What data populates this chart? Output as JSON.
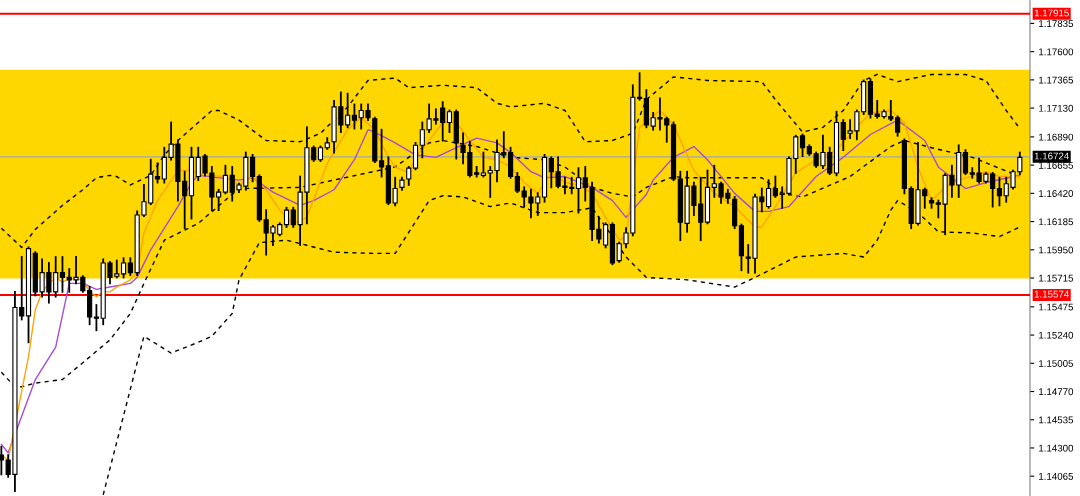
{
  "chart_data": {
    "type": "candlestick",
    "categories": [
      null,
      null,
      null,
      null,
      null,
      null,
      null,
      null,
      null,
      null,
      null,
      null,
      null,
      null,
      null,
      null,
      null,
      null,
      null,
      null,
      null,
      null,
      null,
      null,
      null,
      null,
      null,
      null,
      null,
      null,
      null,
      null,
      null,
      null,
      null,
      null,
      null,
      null,
      null,
      null,
      null,
      null,
      null,
      null,
      null,
      null,
      null,
      null,
      null,
      null,
      null,
      null,
      null,
      null,
      null,
      null,
      null,
      null,
      null,
      null,
      null,
      null,
      null,
      null,
      null,
      null,
      null,
      null,
      null,
      null,
      null,
      null,
      null,
      null,
      null,
      null,
      null,
      null,
      null,
      null,
      null,
      null,
      null,
      null,
      null,
      null,
      null,
      null,
      null,
      null,
      null,
      null,
      null,
      null,
      null,
      null,
      null,
      null,
      null,
      null,
      null,
      null,
      null,
      null,
      null,
      null,
      null,
      null,
      null,
      null,
      null,
      null,
      null,
      null,
      null,
      null,
      null,
      null,
      null,
      null,
      null,
      null,
      null,
      null,
      null,
      null,
      null,
      null,
      null,
      null,
      null,
      null,
      null,
      null,
      null,
      null,
      null,
      null,
      null,
      null,
      null,
      null,
      null,
      null,
      null,
      null,
      null,
      null,
      null,
      null,
      null
    ],
    "ohlc": [
      [
        1.1424,
        1.1431,
        1.1408,
        1.142
      ],
      [
        1.142,
        1.1424,
        1.1406,
        1.1408
      ],
      [
        1.1408,
        1.156,
        1.1394,
        1.1547
      ],
      [
        1.1547,
        1.1589,
        1.1537,
        1.154
      ],
      [
        1.154,
        1.1597,
        1.1518,
        1.1596
      ],
      [
        1.1592,
        1.1593,
        1.1557,
        1.156
      ],
      [
        1.156,
        1.1587,
        1.1556,
        1.1576
      ],
      [
        1.1576,
        1.1584,
        1.1551,
        1.156
      ],
      [
        1.156,
        1.1589,
        1.1556,
        1.1576
      ],
      [
        1.1576,
        1.1589,
        1.156,
        1.1572
      ],
      [
        1.1572,
        1.1579,
        1.156,
        1.157
      ],
      [
        1.157,
        1.1589,
        1.1567,
        1.1572
      ],
      [
        1.1572,
        1.1573,
        1.156,
        1.1561
      ],
      [
        1.1561,
        1.1564,
        1.1533,
        1.1539
      ],
      [
        1.1539,
        1.1549,
        1.1528,
        1.1538
      ],
      [
        1.1538,
        1.1587,
        1.1533,
        1.1584
      ],
      [
        1.1584,
        1.1585,
        1.1567,
        1.1572
      ],
      [
        1.1573,
        1.1586,
        1.1572,
        1.1575
      ],
      [
        1.1575,
        1.1588,
        1.1572,
        1.1584
      ],
      [
        1.1584,
        1.1588,
        1.1574,
        1.1576
      ],
      [
        1.1576,
        1.1627,
        1.1574,
        1.1624
      ],
      [
        1.1624,
        1.1649,
        1.1623,
        1.1635
      ],
      [
        1.1634,
        1.167,
        1.1633,
        1.1658
      ],
      [
        1.1656,
        1.1667,
        1.1651,
        1.1654
      ],
      [
        1.1654,
        1.168,
        1.1651,
        1.1672
      ],
      [
        1.1672,
        1.1701,
        1.167,
        1.1683
      ],
      [
        1.1683,
        1.1686,
        1.1636,
        1.1652
      ],
      [
        1.1652,
        1.166,
        1.1613,
        1.164
      ],
      [
        1.164,
        1.168,
        1.1621,
        1.1672
      ],
      [
        1.1656,
        1.168,
        1.1653,
        1.1672
      ],
      [
        1.1673,
        1.1674,
        1.1657,
        1.1659
      ],
      [
        1.1659,
        1.1664,
        1.1628,
        1.1639
      ],
      [
        1.1639,
        1.1645,
        1.1628,
        1.1643
      ],
      [
        1.1643,
        1.1665,
        1.1642,
        1.1657
      ],
      [
        1.1657,
        1.1664,
        1.1636,
        1.1643
      ],
      [
        1.1645,
        1.165,
        1.1643,
        1.1649
      ],
      [
        1.1648,
        1.1676,
        1.1645,
        1.1672
      ],
      [
        1.1672,
        1.1674,
        1.1652,
        1.1656
      ],
      [
        1.1656,
        1.1657,
        1.1619,
        1.162
      ],
      [
        1.162,
        1.1628,
        1.1591,
        1.1609
      ],
      [
        1.1609,
        1.1615,
        1.1599,
        1.1614
      ],
      [
        1.1608,
        1.1617,
        1.1607,
        1.1616
      ],
      [
        1.1616,
        1.163,
        1.1614,
        1.1628
      ],
      [
        1.1628,
        1.163,
        1.1614,
        1.1616
      ],
      [
        1.1616,
        1.1656,
        1.1599,
        1.1643
      ],
      [
        1.1643,
        1.1697,
        1.1617,
        1.168
      ],
      [
        1.168,
        1.1681,
        1.1669,
        1.167
      ],
      [
        1.167,
        1.1681,
        1.1669,
        1.168
      ],
      [
        1.168,
        1.1688,
        1.1679,
        1.1684
      ],
      [
        1.1685,
        1.1719,
        1.1676,
        1.1714
      ],
      [
        1.1714,
        1.1726,
        1.1693,
        1.1699
      ],
      [
        1.1699,
        1.1725,
        1.1697,
        1.1707
      ],
      [
        1.1707,
        1.1716,
        1.1696,
        1.1703
      ],
      [
        1.1705,
        1.1716,
        1.1696,
        1.1711
      ],
      [
        1.1711,
        1.1716,
        1.1703,
        1.1705
      ],
      [
        1.1704,
        1.1705,
        1.1668,
        1.1669
      ],
      [
        1.1669,
        1.1695,
        1.1656,
        1.1664
      ],
      [
        1.1665,
        1.1672,
        1.1633,
        1.1634
      ],
      [
        1.1634,
        1.1655,
        1.1632,
        1.1646
      ],
      [
        1.1647,
        1.1655,
        1.1645,
        1.1653
      ],
      [
        1.1654,
        1.1664,
        1.1649,
        1.1663
      ],
      [
        1.1663,
        1.1684,
        1.1662,
        1.1682
      ],
      [
        1.1682,
        1.1701,
        1.1672,
        1.1695
      ],
      [
        1.1695,
        1.1716,
        1.1693,
        1.1704
      ],
      [
        1.1704,
        1.1712,
        1.17,
        1.1703
      ],
      [
        1.1713,
        1.1718,
        1.1686,
        1.1701
      ],
      [
        1.1701,
        1.1711,
        1.1693,
        1.171
      ],
      [
        1.171,
        1.1711,
        1.1671,
        1.1684
      ],
      [
        1.1682,
        1.1692,
        1.1667,
        1.1676
      ],
      [
        1.1676,
        1.1685,
        1.1656,
        1.1657
      ],
      [
        1.1659,
        1.1664,
        1.1656,
        1.1658
      ],
      [
        1.1657,
        1.1676,
        1.1656,
        1.1659
      ],
      [
        1.1659,
        1.1664,
        1.1639,
        1.1661
      ],
      [
        1.1661,
        1.1686,
        1.1652,
        1.1676
      ],
      [
        1.1676,
        1.1693,
        1.1672,
        1.1674
      ],
      [
        1.1676,
        1.168,
        1.1655,
        1.1656
      ],
      [
        1.1656,
        1.1659,
        1.1643,
        1.1644
      ],
      [
        1.1644,
        1.1647,
        1.1631,
        1.1639
      ],
      [
        1.1639,
        1.1645,
        1.1622,
        1.1634
      ],
      [
        1.1634,
        1.1642,
        1.1624,
        1.1639
      ],
      [
        1.1639,
        1.1674,
        1.1635,
        1.1672
      ],
      [
        1.1671,
        1.1672,
        1.1647,
        1.166
      ],
      [
        1.166,
        1.1672,
        1.1647,
        1.1648
      ],
      [
        1.1648,
        1.1655,
        1.1642,
        1.1647
      ],
      [
        1.1647,
        1.1655,
        1.1642,
        1.1646
      ],
      [
        1.1646,
        1.1663,
        1.1626,
        1.1655
      ],
      [
        1.1655,
        1.1664,
        1.1636,
        1.1647
      ],
      [
        1.1647,
        1.1651,
        1.1603,
        1.1612
      ],
      [
        1.1612,
        1.1622,
        1.1601,
        1.1604
      ],
      [
        1.1599,
        1.1617,
        1.1597,
        1.1616
      ],
      [
        1.1616,
        1.1617,
        1.1583,
        1.1584
      ],
      [
        1.1586,
        1.1601,
        1.1585,
        1.16
      ],
      [
        1.16,
        1.1613,
        1.1597,
        1.1609
      ],
      [
        1.1609,
        1.1732,
        1.1607,
        1.1722
      ],
      [
        1.1722,
        1.1742,
        1.172,
        1.1721
      ],
      [
        1.1721,
        1.1728,
        1.1697,
        1.1699
      ],
      [
        1.1698,
        1.1709,
        1.1695,
        1.1705
      ],
      [
        1.1705,
        1.1721,
        1.1695,
        1.1704
      ],
      [
        1.1704,
        1.1705,
        1.1685,
        1.1699
      ],
      [
        1.1699,
        1.1701,
        1.1653,
        1.1654
      ],
      [
        1.1654,
        1.166,
        1.1603,
        1.1618
      ],
      [
        1.1617,
        1.166,
        1.161,
        1.1648
      ],
      [
        1.1648,
        1.1651,
        1.1624,
        1.1632
      ],
      [
        1.1633,
        1.1655,
        1.1603,
        1.1618
      ],
      [
        1.1618,
        1.1661,
        1.1617,
        1.1647
      ],
      [
        1.1647,
        1.1665,
        1.1639,
        1.165
      ],
      [
        1.165,
        1.1651,
        1.1634,
        1.1639
      ],
      [
        1.1642,
        1.1645,
        1.1634,
        1.1638
      ],
      [
        1.1637,
        1.1639,
        1.1613,
        1.1615
      ],
      [
        1.1615,
        1.1616,
        1.1578,
        1.159
      ],
      [
        1.1589,
        1.1599,
        1.1576,
        1.1588
      ],
      [
        1.1588,
        1.1641,
        1.1576,
        1.1639
      ],
      [
        1.1639,
        1.1646,
        1.1627,
        1.1635
      ],
      [
        1.1631,
        1.1653,
        1.163,
        1.1646
      ],
      [
        1.1646,
        1.1656,
        1.1639,
        1.164
      ],
      [
        1.1641,
        1.1647,
        1.163,
        1.1642
      ],
      [
        1.1642,
        1.1672,
        1.1641,
        1.1671
      ],
      [
        1.1671,
        1.169,
        1.1659,
        1.1689
      ],
      [
        1.169,
        1.1691,
        1.1673,
        1.168
      ],
      [
        1.1681,
        1.1682,
        1.1674,
        1.1675
      ],
      [
        1.1675,
        1.1676,
        1.1664,
        1.1665
      ],
      [
        1.1665,
        1.169,
        1.1663,
        1.1676
      ],
      [
        1.1676,
        1.168,
        1.1658,
        1.1659
      ],
      [
        1.1659,
        1.171,
        1.1657,
        1.1701
      ],
      [
        1.1701,
        1.1703,
        1.1678,
        1.1687
      ],
      [
        1.1692,
        1.1703,
        1.1688,
        1.1694
      ],
      [
        1.1694,
        1.1711,
        1.1687,
        1.171
      ],
      [
        1.171,
        1.1736,
        1.1708,
        1.1735
      ],
      [
        1.1735,
        1.1737,
        1.1705,
        1.1708
      ],
      [
        1.1708,
        1.1719,
        1.1705,
        1.1706
      ],
      [
        1.1706,
        1.1711,
        1.1705,
        1.171
      ],
      [
        1.1706,
        1.1719,
        1.1703,
        1.1704
      ],
      [
        1.1705,
        1.1706,
        1.169,
        1.1693
      ],
      [
        1.1686,
        1.1687,
        1.1642,
        1.1646
      ],
      [
        1.1646,
        1.1647,
        1.1613,
        1.1617
      ],
      [
        1.1617,
        1.1684,
        1.1616,
        1.1645
      ],
      [
        1.1645,
        1.1646,
        1.163,
        1.164
      ],
      [
        1.1636,
        1.1638,
        1.163,
        1.1634
      ],
      [
        1.1634,
        1.1636,
        1.1622,
        1.1633
      ],
      [
        1.1633,
        1.1658,
        1.1608,
        1.1657
      ],
      [
        1.1657,
        1.1665,
        1.1639,
        1.1649
      ],
      [
        1.1649,
        1.1682,
        1.1639,
        1.1676
      ],
      [
        1.1676,
        1.1678,
        1.1658,
        1.1659
      ],
      [
        1.1659,
        1.1663,
        1.1655,
        1.1658
      ],
      [
        1.1659,
        1.1671,
        1.1651,
        1.1652
      ],
      [
        1.1652,
        1.1659,
        1.1651,
        1.1658
      ],
      [
        1.1658,
        1.1659,
        1.1631,
        1.1646
      ],
      [
        1.1646,
        1.1655,
        1.1632,
        1.164
      ],
      [
        1.164,
        1.1655,
        1.1635,
        1.165
      ],
      [
        1.1647,
        1.1661,
        1.1646,
        1.166
      ],
      [
        1.166,
        1.1676,
        1.1658,
        1.1672
      ]
    ],
    "series": [
      {
        "type": "line",
        "color": "#000000",
        "line_style": "dashed",
        "values": [
          1.1613,
          null,
          null,
          1.1597,
          null,
          1.1612,
          null,
          null,
          null,
          1.1632,
          null,
          null,
          1.1645,
          null,
          1.1655,
          null,
          1.1657,
          1.1656,
          null,
          1.1649,
          null,
          null,
          1.1657,
          null,
          1.1674,
          null,
          1.1686,
          null,
          null,
          null,
          null,
          1.1711,
          1.1711,
          null,
          null,
          1.1703,
          null,
          null,
          null,
          1.1686,
          null,
          null,
          null,
          null,
          1.1685,
          null,
          null,
          1.1692,
          null,
          null,
          null,
          1.1714,
          null,
          null,
          1.1736,
          null,
          null,
          null,
          1.1738,
          null,
          1.173,
          null,
          null,
          null,
          null,
          1.1732,
          null,
          null,
          null,
          null,
          1.173,
          null,
          null,
          1.1717,
          null,
          1.1714,
          null,
          null,
          null,
          null,
          1.1717,
          null,
          null,
          1.1711,
          null,
          null,
          1.1685,
          null,
          null,
          null,
          1.1686,
          null,
          null,
          1.1692,
          null,
          1.172,
          null,
          null,
          null,
          1.1739,
          null,
          null,
          null,
          null,
          1.1736,
          null,
          null,
          null,
          null,
          null,
          null,
          null,
          1.1735,
          null,
          1.172,
          null,
          null,
          null,
          1.1693,
          null,
          null,
          1.1697,
          null,
          null,
          1.1711,
          null,
          null,
          1.1736,
          null,
          1.1741,
          null,
          null,
          1.1735,
          null,
          null,
          null,
          null,
          1.1741,
          null,
          null,
          null,
          null,
          1.1741,
          null,
          null,
          1.1736,
          null,
          null,
          1.1711,
          null,
          1.1696
        ]
      },
      {
        "type": "line",
        "color": "#000000",
        "line_style": "dashed",
        "values": [
          1.1493,
          null,
          1.1481,
          1.1481,
          null,
          1.1484,
          null,
          null,
          null,
          1.1487,
          null,
          null,
          1.1501,
          null,
          null,
          null,
          1.152,
          null,
          null,
          1.1542,
          null,
          1.1567,
          null,
          null,
          1.1603,
          null,
          null,
          null,
          null,
          1.1617,
          null,
          null,
          null,
          null,
          null,
          1.1646,
          null,
          null,
          null,
          null,
          null,
          null,
          null,
          null,
          1.1647,
          null,
          null,
          null,
          null,
          null,
          null,
          null,
          null,
          null,
          null,
          null,
          null,
          null,
          1.1664,
          null,
          null,
          null,
          null,
          1.1684,
          null,
          1.1686,
          null,
          null,
          null,
          null,
          1.1681,
          null,
          null,
          null,
          null,
          1.1672,
          null,
          null,
          null,
          null,
          1.167,
          null,
          null,
          1.1664,
          null,
          null,
          null,
          1.1647,
          null,
          null,
          1.1642,
          null,
          null,
          1.1639,
          null,
          1.1647,
          null,
          null,
          null,
          1.1656,
          null,
          1.1655,
          null,
          null,
          null,
          null,
          null,
          null,
          null,
          null,
          null,
          null,
          1.1655,
          null,
          null,
          1.1642,
          null,
          null,
          1.1639,
          null,
          null,
          null,
          null,
          null,
          null,
          1.1656,
          null,
          null,
          null,
          null,
          null,
          1.1681,
          null,
          1.1686,
          null,
          null,
          null,
          1.168,
          null,
          null,
          null,
          null,
          null,
          1.1672,
          null,
          null,
          null,
          null,
          null,
          null,
          1.1656
        ]
      },
      {
        "type": "line",
        "color": "#000000",
        "line_style": "dashed",
        "values": [
          null,
          null,
          null,
          null,
          null,
          null,
          null,
          null,
          null,
          null,
          null,
          null,
          null,
          null,
          null,
          1.1391,
          null,
          null,
          null,
          null,
          null,
          1.1523,
          null,
          null,
          null,
          1.1509,
          null,
          null,
          null,
          1.1518,
          null,
          1.1523,
          null,
          null,
          1.1542,
          1.157,
          null,
          null,
          1.1601,
          null,
          null,
          null,
          1.1603,
          null,
          null,
          null,
          null,
          null,
          null,
          1.1593,
          null,
          null,
          null,
          null,
          null,
          1.1592,
          null,
          null,
          1.1592,
          null,
          null,
          null,
          null,
          1.1636,
          null,
          1.164,
          null,
          null,
          1.1639,
          null,
          null,
          null,
          1.1631,
          null,
          null,
          1.1634,
          null,
          null,
          null,
          1.1626,
          null,
          null,
          null,
          1.1626,
          null,
          null,
          null,
          1.163,
          null,
          null,
          1.1606,
          null,
          1.1589,
          null,
          null,
          1.1572,
          null,
          null,
          null,
          null,
          null,
          1.157,
          null,
          null,
          null,
          null,
          null,
          null,
          1.1564,
          null,
          null,
          1.1572,
          null,
          null,
          null,
          null,
          null,
          1.1589,
          null,
          null,
          null,
          null,
          null,
          null,
          1.1592,
          null,
          null,
          1.1589,
          null,
          1.1603,
          null,
          1.1628,
          1.1636,
          null,
          null,
          1.1626,
          null,
          null,
          1.161,
          null,
          null,
          null,
          null,
          1.1609,
          null,
          null,
          null,
          1.1606,
          null,
          null,
          1.1614
        ]
      },
      {
        "type": "line",
        "color": "#a64bd6",
        "line_style": "solid",
        "values": [
          1.1433,
          1.1426,
          null,
          null,
          null,
          1.1487,
          null,
          null,
          1.1514,
          null,
          1.1567,
          null,
          1.1567,
          null,
          1.1562,
          null,
          1.1564,
          null,
          null,
          1.1567,
          1.1572,
          null,
          1.1595,
          null,
          null,
          null,
          1.1631,
          null,
          1.1651,
          1.1657,
          null,
          null,
          null,
          null,
          null,
          1.1653,
          null,
          1.1655,
          null,
          null,
          1.1643,
          null,
          null,
          null,
          1.1632,
          null,
          1.1636,
          null,
          null,
          1.1645,
          null,
          null,
          1.167,
          null,
          1.1695,
          1.1693,
          null,
          null,
          1.1684,
          null,
          null,
          1.1674,
          null,
          null,
          1.1672,
          null,
          null,
          1.168,
          null,
          null,
          1.1688,
          null,
          null,
          1.1684,
          null,
          1.1676,
          null,
          null,
          1.166,
          null,
          1.1655,
          null,
          null,
          1.1656,
          null,
          null,
          null,
          1.1647,
          null,
          null,
          1.1636,
          null,
          1.1622,
          null,
          null,
          1.1641,
          1.1653,
          null,
          null,
          1.1672,
          null,
          null,
          1.1681,
          null,
          1.167,
          null,
          null,
          null,
          1.1642,
          null,
          null,
          1.1627,
          null,
          1.1627,
          null,
          null,
          1.1631,
          null,
          null,
          null,
          1.1656,
          null,
          null,
          null,
          1.1672,
          null,
          null,
          null,
          1.1691,
          null,
          null,
          null,
          1.1703,
          null,
          null,
          null,
          1.1686,
          null,
          1.1664,
          null,
          null,
          null,
          1.1646,
          null,
          null,
          1.1651,
          null,
          null,
          null,
          null,
          1.1657
        ]
      },
      {
        "type": "line",
        "color": "#ffa500",
        "line_style": "solid",
        "values": [
          1.1424,
          1.142,
          null,
          null,
          1.1506,
          1.1545,
          1.156,
          1.1567,
          1.1572,
          1.1568,
          1.1571,
          null,
          1.157,
          1.156,
          1.1556,
          1.156,
          1.156,
          1.1564,
          null,
          1.157,
          1.1576,
          1.1609,
          null,
          1.1636,
          null,
          null,
          1.1661,
          null,
          1.1661,
          null,
          1.1657,
          null,
          null,
          1.1656,
          null,
          1.1649,
          null,
          1.1656,
          null,
          1.1645,
          null,
          1.1628,
          null,
          1.1617,
          null,
          1.1622,
          null,
          null,
          1.1667,
          null,
          null,
          1.1695,
          null,
          1.1705,
          null,
          1.1695,
          null,
          1.1672,
          1.1664,
          null,
          1.1659,
          1.1672,
          null,
          1.1686,
          null,
          1.1701,
          null,
          1.1701,
          null,
          1.1686,
          null,
          1.1672,
          null,
          1.167,
          null,
          1.1664,
          null,
          1.1651,
          null,
          1.1642,
          null,
          1.1659,
          null,
          1.1651,
          null,
          1.1649,
          null,
          1.1642,
          null,
          1.1622,
          null,
          1.1603,
          1.1606,
          null,
          1.1697,
          null,
          null,
          1.1711,
          null,
          1.1699,
          null,
          null,
          1.1661,
          null,
          null,
          1.1642,
          null,
          null,
          1.1631,
          null,
          null,
          1.1614,
          1.1614,
          null,
          1.1631,
          null,
          null,
          1.1659,
          null,
          null,
          1.167,
          null,
          null,
          1.1678,
          null,
          null,
          1.1697,
          null,
          1.1709,
          null,
          null,
          1.1711,
          null,
          1.1701,
          null,
          1.1664,
          null,
          1.1636,
          null,
          1.1647,
          null,
          1.1653,
          null,
          null,
          null,
          1.166,
          null,
          1.1656,
          null,
          null,
          1.1656
        ]
      }
    ],
    "ylim": [
      1.139,
      1.1803
    ],
    "yticks": [
      {
        "value": 1.17835,
        "label": "1.17835"
      },
      {
        "value": 1.176,
        "label": "1.17600"
      },
      {
        "value": 1.17365,
        "label": "1.17365"
      },
      {
        "value": 1.1713,
        "label": "1.17130"
      },
      {
        "value": 1.1689,
        "label": "1.16890"
      },
      {
        "value": 1.16655,
        "label": "1.16655"
      },
      {
        "value": 1.1642,
        "label": "1.16420"
      },
      {
        "value": 1.16185,
        "label": "1.16185"
      },
      {
        "value": 1.1595,
        "label": "1.15950"
      },
      {
        "value": 1.15715,
        "label": "1.15715"
      },
      {
        "value": 1.15475,
        "label": "1.15475"
      },
      {
        "value": 1.1524,
        "label": "1.15240"
      },
      {
        "value": 1.15005,
        "label": "1.15005"
      },
      {
        "value": 1.1477,
        "label": "1.14770"
      },
      {
        "value": 1.14535,
        "label": "1.14535"
      },
      {
        "value": 1.143,
        "label": "1.14300"
      },
      {
        "value": 1.14065,
        "label": "1.14065"
      }
    ],
    "ref_lines": [
      {
        "axis": "y",
        "value": 1.17915,
        "label": "1.17915",
        "color": "#ff0000"
      },
      {
        "axis": "y",
        "value": 1.15574,
        "label": "1.15574",
        "color": "#ff0000"
      },
      {
        "axis": "y",
        "value": 1.16724,
        "label": "1.16724",
        "color": "#a0a8b0"
      }
    ],
    "bands": [
      {
        "axis": "y",
        "from": 1.1571,
        "to": 1.1745,
        "color": "#ffd700"
      }
    ],
    "tick_labels": "y"
  }
}
